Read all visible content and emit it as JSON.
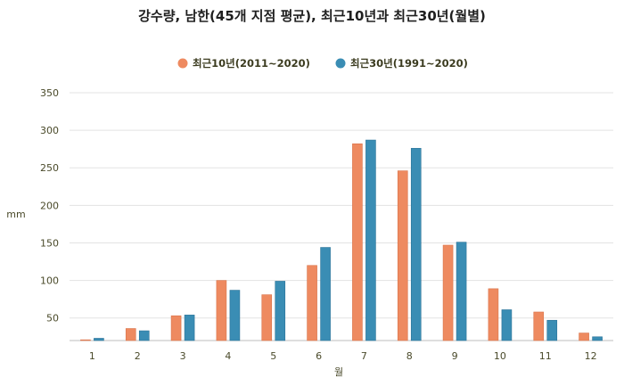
{
  "chart_data": {
    "type": "bar",
    "title": "강수량, 남한(45개 지점 평균), 최근10년과 최근30년(월별)",
    "xlabel": "월",
    "ylabel": "mm",
    "categories": [
      "1",
      "2",
      "3",
      "4",
      "5",
      "6",
      "7",
      "8",
      "9",
      "10",
      "11",
      "12"
    ],
    "series": [
      {
        "name": "최근10년(2011~2020)",
        "color": "#ee8a60",
        "values": [
          21,
          36,
          53,
          100,
          81,
          120,
          282,
          246,
          147,
          89,
          58,
          30
        ]
      },
      {
        "name": "최근30년(1991~2020)",
        "color": "#3a8db4",
        "values": [
          23,
          33,
          54,
          87,
          99,
          144,
          287,
          276,
          151,
          61,
          47,
          25
        ]
      }
    ],
    "ylim": [
      20,
      350
    ],
    "yticks": [
      50,
      100,
      150,
      200,
      250,
      300,
      350
    ],
    "grid": true,
    "legend_position": "top-center"
  }
}
